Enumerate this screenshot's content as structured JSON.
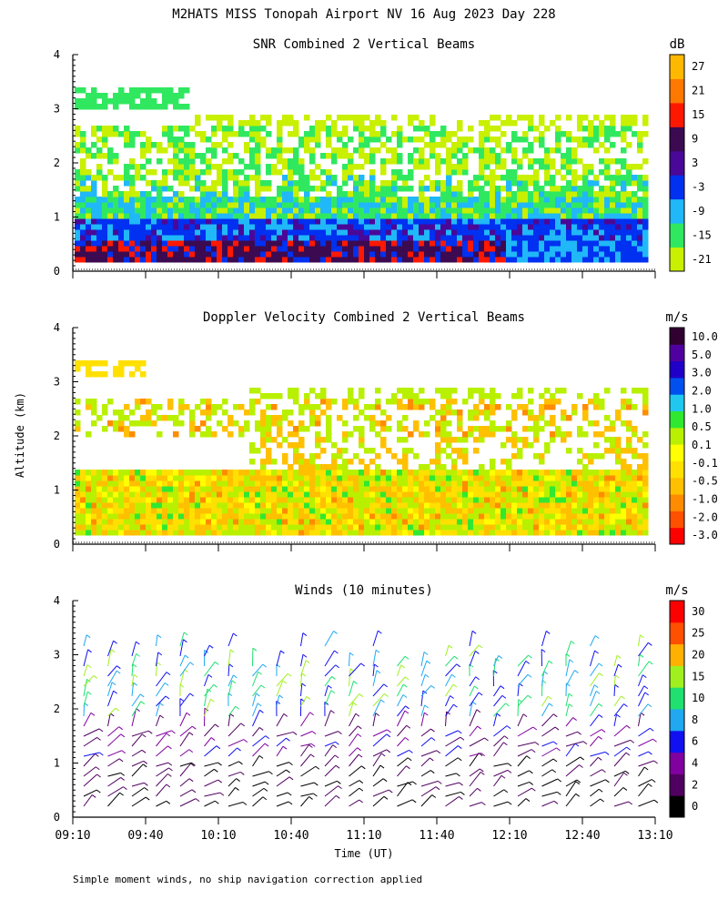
{
  "figure": {
    "title": "M2HATS MISS Tonopah Airport NV  16 Aug 2023 Day 228",
    "ylabel": "Altitude (km)",
    "xlabel": "Time (UT)",
    "footnote": "Simple moment winds, no ship navigation correction applied"
  },
  "chart_data": [
    {
      "type": "heatmap",
      "title": "SNR Combined 2 Vertical Beams",
      "units": "dB",
      "ylim": [
        0,
        4
      ],
      "yticks": [
        "0",
        "1",
        "2",
        "3",
        "4"
      ],
      "colorbar_labels": [
        "-21",
        "-15",
        "-9",
        "-3",
        "3",
        "9",
        "15",
        "21",
        "27"
      ],
      "colorbar_colors": [
        "#c8f000",
        "#30e860",
        "#20b8f8",
        "#0030f0",
        "#4a0898",
        "#3c0a50",
        "#ff1800",
        "#ff7800",
        "#ffb800"
      ]
    },
    {
      "type": "heatmap",
      "title": "Doppler Velocity Combined 2 Vertical Beams",
      "units": "m/s",
      "ylim": [
        0,
        4
      ],
      "yticks": [
        "0",
        "1",
        "2",
        "3",
        "4"
      ],
      "colorbar_labels": [
        "-3.0",
        "-2.0",
        "-1.0",
        "-0.5",
        "-0.1",
        "0.1",
        "0.5",
        "1.0",
        "2.0",
        "3.0",
        "5.0",
        "10.0"
      ],
      "colorbar_colors": [
        "#ff0000",
        "#ff5000",
        "#ff8c00",
        "#ffc000",
        "#ffe000",
        "#ffff00",
        "#b8f000",
        "#30e830",
        "#20c8f0",
        "#0050f0",
        "#2000c8",
        "#5000a0",
        "#300030"
      ]
    },
    {
      "type": "scatter",
      "title": "Winds (10 minutes)",
      "units": "m/s",
      "ylim": [
        0,
        4
      ],
      "yticks": [
        "0",
        "1",
        "2",
        "3",
        "4"
      ],
      "colorbar_labels": [
        "0",
        "2",
        "4",
        "6",
        "8",
        "10",
        "15",
        "20",
        "25",
        "30"
      ],
      "colorbar_colors": [
        "#000000",
        "#500060",
        "#8000a0",
        "#1010f0",
        "#20a8f0",
        "#20e070",
        "#a0f020",
        "#ffb000",
        "#ff5000",
        "#ff0000"
      ]
    }
  ],
  "time_axis": {
    "ticks": [
      "09:10",
      "09:40",
      "10:10",
      "10:40",
      "11:10",
      "11:40",
      "12:10",
      "12:40",
      "13:10"
    ]
  }
}
